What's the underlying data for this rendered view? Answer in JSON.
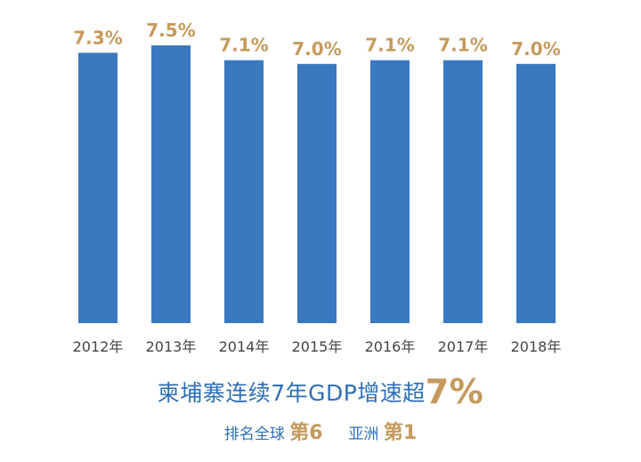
{
  "chart_data": {
    "type": "bar",
    "categories": [
      "2012年",
      "2013年",
      "2014年",
      "2015年",
      "2016年",
      "2017年",
      "2018年"
    ],
    "values": [
      7.3,
      7.5,
      7.1,
      7.0,
      7.1,
      7.1,
      7.0
    ],
    "data_labels": [
      "7.3%",
      "7.5%",
      "7.1%",
      "7.0%",
      "7.1%",
      "7.1%",
      "7.0%"
    ],
    "bar_color": "#3a78bf",
    "label_color": "#c59a5c",
    "axis_text_color": "#444444",
    "grid": false,
    "legend": "none"
  },
  "caption": {
    "line1_text": "柬埔寨连续7年GDP增速超",
    "line1_highlight": "7%",
    "line2_text_a": "排名全球",
    "line2_highlight_a": "第6",
    "line2_text_b": "亚洲",
    "line2_highlight_b": "第1",
    "text_color": "#2f6fb5",
    "highlight_color": "#c59a5c"
  }
}
